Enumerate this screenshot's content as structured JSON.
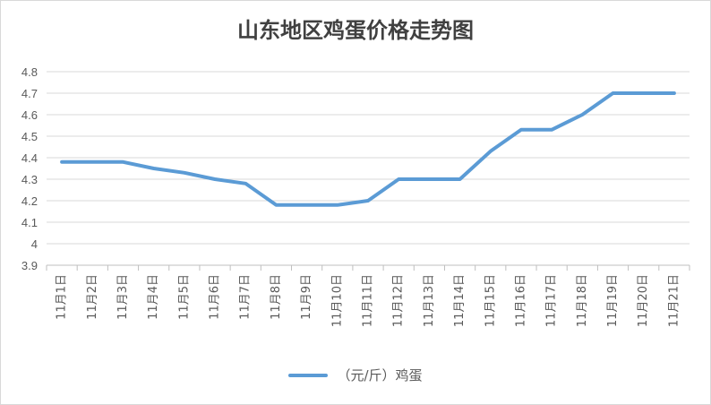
{
  "chart_data": {
    "type": "line",
    "title": "山东地区鸡蛋价格走势图",
    "categories": [
      "11月1日",
      "11月2日",
      "11月3日",
      "11月4日",
      "11月5日",
      "11月6日",
      "11月7日",
      "11月8日",
      "11月9日",
      "11月10日",
      "11月11日",
      "11月12日",
      "11月13日",
      "11月14日",
      "11月15日",
      "11月16日",
      "11月17日",
      "11月18日",
      "11月19日",
      "11月20日",
      "11月21日"
    ],
    "series": [
      {
        "name": "（元/斤）鸡蛋",
        "color": "#5b9bd5",
        "values": [
          4.38,
          4.38,
          4.38,
          4.35,
          4.33,
          4.3,
          4.28,
          4.18,
          4.18,
          4.18,
          4.2,
          4.3,
          4.3,
          4.3,
          4.43,
          4.53,
          4.53,
          4.6,
          4.7,
          4.7,
          4.7
        ]
      }
    ],
    "ylim": [
      3.9,
      4.8
    ],
    "yticks": [
      "3.9",
      "4",
      "4.1",
      "4.2",
      "4.3",
      "4.4",
      "4.5",
      "4.6",
      "4.7",
      "4.8"
    ],
    "grid": true,
    "legend_position": "bottom"
  }
}
